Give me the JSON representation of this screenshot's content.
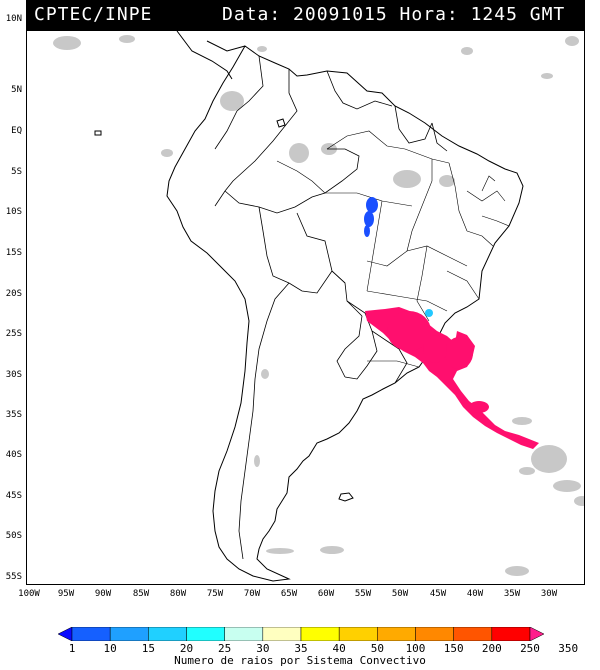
{
  "header": {
    "org": "CPTEC/INPE",
    "datetime": "Data: 20091015 Hora: 1245 GMT"
  },
  "lat_labels": [
    "10N",
    "5N",
    "EQ",
    "5S",
    "10S",
    "15S",
    "20S",
    "25S",
    "30S",
    "35S",
    "40S",
    "45S",
    "50S",
    "55S"
  ],
  "lon_labels": [
    "100W",
    "95W",
    "90W",
    "85W",
    "80W",
    "75W",
    "70W",
    "65W",
    "60W",
    "55W",
    "50W",
    "45W",
    "40W",
    "35W",
    "30W"
  ],
  "legend": {
    "values": [
      "1",
      "10",
      "15",
      "20",
      "25",
      "30",
      "35",
      "40",
      "50",
      "100",
      "150",
      "200",
      "250",
      "350"
    ],
    "colors": [
      "#0a0aff",
      "#1560ff",
      "#1fa0ff",
      "#20d0ff",
      "#20ffff",
      "#c8fff0",
      "#ffffc0",
      "#ffff00",
      "#ffd000",
      "#ffaa00",
      "#ff8800",
      "#ff5500",
      "#ff0000",
      "#ff1e8c"
    ],
    "title": "Numero de raios por Sistema Convectivo"
  },
  "colors": {
    "header_bg": "#000000",
    "cloud": "#c8c8c8",
    "storm_blue": "#1a4fff",
    "storm_pink": "#ff0f6e",
    "storm_cyan": "#22c8ff"
  }
}
